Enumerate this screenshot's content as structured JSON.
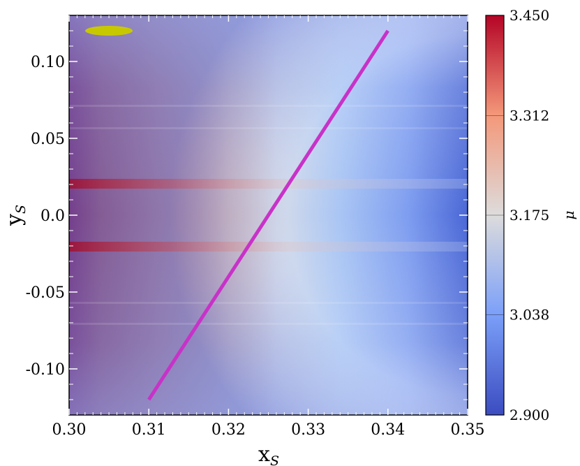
{
  "chart_data": {
    "type": "heatmap",
    "title": "",
    "xlabel": "x",
    "xlabel_sub": "S",
    "ylabel": "y",
    "ylabel_sub": "S",
    "xlim": [
      0.3,
      0.35
    ],
    "ylim": [
      -0.13,
      0.13
    ],
    "x_ticks": [
      0.3,
      0.31,
      0.32,
      0.33,
      0.34,
      0.35
    ],
    "x_tick_labels": [
      "0.30",
      "0.31",
      "0.32",
      "0.33",
      "0.34",
      "0.35"
    ],
    "y_ticks": [
      0.1,
      0.05,
      0.0,
      -0.05,
      -0.1
    ],
    "y_tick_labels": [
      "0.10",
      "0.05",
      "0.0",
      "-0.05",
      "-0.10"
    ],
    "colorbar": {
      "label": "μ",
      "min": 2.9,
      "max": 3.45,
      "ticks": [
        3.45,
        3.312,
        3.175,
        3.038,
        2.9
      ],
      "tick_labels": [
        "3.450",
        "3.312",
        "3.175",
        "3.038",
        "2.900"
      ],
      "colormap": "coolwarm"
    },
    "field": {
      "description_values": "mu decreases with x_S and |y_S|",
      "mu_at_left_center": 3.44,
      "mu_at_right_edge": 2.92,
      "ridges_y": [
        0.02,
        -0.02
      ]
    },
    "line": {
      "color": "#c832c8",
      "points": [
        [
          0.31,
          -0.12
        ],
        [
          0.34,
          0.12
        ]
      ]
    },
    "marker": {
      "shape": "ellipse",
      "color": "#c8c800",
      "center": [
        0.305,
        0.12
      ]
    },
    "grid": false,
    "legend": "none"
  }
}
